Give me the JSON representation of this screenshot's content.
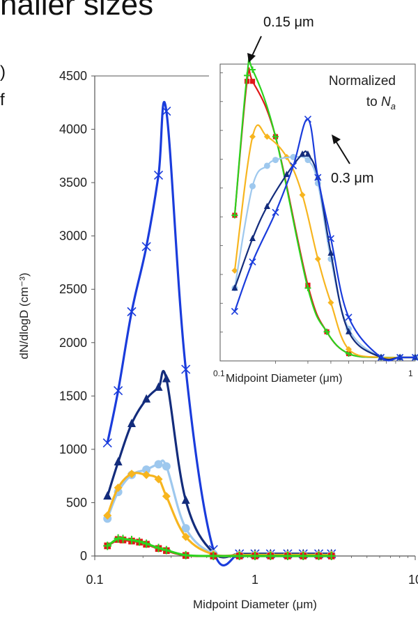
{
  "heading_fragment": "naller sizes",
  "left_fragments": [
    ")",
    "f"
  ],
  "chart_data": [
    {
      "type": "line",
      "x_scale": "log",
      "xlim": [
        0.1,
        10
      ],
      "ylim": [
        0,
        4500
      ],
      "yticks": [
        0,
        500,
        1000,
        1500,
        2000,
        2500,
        3000,
        3500,
        4000,
        4500
      ],
      "xtick_labels": [
        "0.1",
        "1",
        "10"
      ],
      "xlabel": "Midpoint Diameter (μm)",
      "ylabel": "dN/dlogD (cm⁻³)",
      "grid": false,
      "series": [
        {
          "color": "#1a3cdc",
          "marker": "x",
          "x": [
            0.12,
            0.14,
            0.17,
            0.21,
            0.25,
            0.28,
            0.37,
            0.55,
            0.8,
            1.0,
            1.25,
            1.6,
            2.0,
            2.5,
            3.0
          ],
          "y": [
            1060,
            1550,
            2290,
            2900,
            3570,
            4170,
            1750,
            60,
            20,
            20,
            20,
            20,
            20,
            20,
            20
          ]
        },
        {
          "color": "#132c7c",
          "marker": "triangle",
          "x": [
            0.12,
            0.14,
            0.17,
            0.21,
            0.25,
            0.28,
            0.37,
            0.55,
            0.8,
            1.0,
            1.25,
            1.6,
            2.0,
            2.5,
            3.0
          ],
          "y": [
            560,
            880,
            1240,
            1470,
            1580,
            1660,
            520,
            30,
            20,
            20,
            20,
            20,
            20,
            20,
            20
          ]
        },
        {
          "color": "#9ec8ee",
          "marker": "circle",
          "x": [
            0.12,
            0.14,
            0.17,
            0.21,
            0.25,
            0.28,
            0.37,
            0.55,
            0.8,
            1.0,
            1.25,
            1.6,
            2.0,
            2.5,
            3.0
          ],
          "y": [
            350,
            600,
            760,
            810,
            860,
            840,
            260,
            20,
            10,
            10,
            10,
            10,
            10,
            10,
            10
          ]
        },
        {
          "color": "#f7b51f",
          "marker": "diamond",
          "x": [
            0.12,
            0.14,
            0.17,
            0.21,
            0.25,
            0.28,
            0.37,
            0.55,
            0.8,
            1.0,
            1.25,
            1.6,
            2.0,
            2.5,
            3.0
          ],
          "y": [
            380,
            640,
            770,
            760,
            720,
            560,
            180,
            15,
            10,
            10,
            10,
            10,
            10,
            10,
            10
          ]
        },
        {
          "color": "#e01818",
          "marker": "square",
          "x": [
            0.12,
            0.14,
            0.15,
            0.17,
            0.19,
            0.21,
            0.25,
            0.28,
            0.37,
            0.55,
            0.8,
            1.0,
            1.25,
            1.6,
            2.0,
            2.5,
            3.0
          ],
          "y": [
            95,
            155,
            150,
            140,
            130,
            110,
            70,
            50,
            5,
            0,
            0,
            0,
            0,
            0,
            0,
            0,
            0
          ]
        },
        {
          "color": "#2cd21e",
          "marker": "plus",
          "x": [
            0.12,
            0.14,
            0.15,
            0.17,
            0.19,
            0.21,
            0.25,
            0.28,
            0.37,
            0.55,
            0.8,
            1.0,
            1.25,
            1.6,
            2.0,
            2.5,
            3.0
          ],
          "y": [
            95,
            165,
            160,
            150,
            135,
            115,
            75,
            55,
            8,
            0,
            0,
            0,
            0,
            0,
            0,
            0,
            0
          ]
        }
      ]
    },
    {
      "type": "line",
      "x_scale": "log",
      "xlim": [
        0.1,
        1.15
      ],
      "ylim": [
        0,
        1
      ],
      "xtick_labels": [
        "0.1",
        "1"
      ],
      "xlabel": "Midpoint Diameter (μm)",
      "annotation_normalized": "Normalized",
      "annotation_to": "to",
      "annotation_symbol": "N",
      "annotation_subscript": "a",
      "callouts": [
        {
          "text": "0.15 μm",
          "x": 0.15
        },
        {
          "text": "0.3 μm",
          "x": 0.3
        }
      ],
      "series": [
        {
          "color": "#e01818",
          "marker": "square",
          "x": [
            0.12,
            0.14,
            0.15,
            0.2,
            0.3,
            0.38,
            0.5,
            0.75,
            0.95,
            1.15
          ],
          "y": [
            0.5,
            0.96,
            0.96,
            0.77,
            0.26,
            0.1,
            0.025,
            0.012,
            0.012,
            0.012
          ]
        },
        {
          "color": "#2cd21e",
          "marker": "plus",
          "x": [
            0.12,
            0.14,
            0.15,
            0.2,
            0.3,
            0.38,
            0.5,
            0.75,
            0.95,
            1.15
          ],
          "y": [
            0.5,
            0.98,
            1.0,
            0.77,
            0.25,
            0.1,
            0.025,
            0.012,
            0.012,
            0.012
          ]
        },
        {
          "color": "#f7b51f",
          "marker": "diamond",
          "x": [
            0.12,
            0.15,
            0.18,
            0.23,
            0.28,
            0.34,
            0.4,
            0.5,
            0.75,
            0.95,
            1.15
          ],
          "y": [
            0.31,
            0.77,
            0.77,
            0.7,
            0.57,
            0.35,
            0.2,
            0.04,
            0.012,
            0.012,
            0.012
          ]
        },
        {
          "color": "#9ec8ee",
          "marker": "circle",
          "x": [
            0.12,
            0.15,
            0.18,
            0.2,
            0.25,
            0.3,
            0.34,
            0.4,
            0.5,
            0.75,
            0.95,
            1.15
          ],
          "y": [
            0.25,
            0.6,
            0.67,
            0.69,
            0.7,
            0.69,
            0.61,
            0.35,
            0.11,
            0.012,
            0.012,
            0.012
          ]
        },
        {
          "color": "#132c7c",
          "marker": "triangle",
          "x": [
            0.12,
            0.15,
            0.18,
            0.23,
            0.28,
            0.3,
            0.34,
            0.4,
            0.5,
            0.75,
            0.95,
            1.15
          ],
          "y": [
            0.25,
            0.42,
            0.53,
            0.64,
            0.71,
            0.71,
            0.63,
            0.37,
            0.1,
            0.012,
            0.012,
            0.012
          ]
        },
        {
          "color": "#1a3cdc",
          "marker": "x",
          "x": [
            0.12,
            0.15,
            0.2,
            0.25,
            0.3,
            0.34,
            0.4,
            0.5,
            0.75,
            0.95,
            1.15
          ],
          "y": [
            0.17,
            0.34,
            0.51,
            0.67,
            0.83,
            0.63,
            0.42,
            0.15,
            0.012,
            0.012,
            0.012
          ]
        }
      ]
    }
  ]
}
